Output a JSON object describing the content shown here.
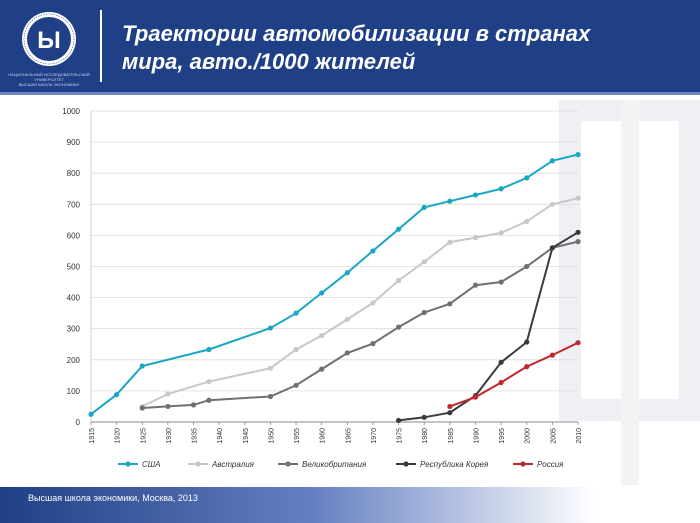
{
  "header": {
    "title_line1": "Траектории автомобилизации в странах",
    "title_line2": "мира, авто./1000 жителей",
    "logo_caption_line1": "НАЦИОНАЛЬНЫЙ ИССЛЕДОВАТЕЛЬСКИЙ УНИВЕРСИТЕТ",
    "logo_caption_line2": "ВЫСШАЯ ШКОЛА ЭКОНОМИКИ"
  },
  "footer": {
    "text": "Высшая школа экономики, Москва, 2013"
  },
  "colors": {
    "header_bg": "#1f3f86",
    "accent": "#6f86c4"
  },
  "chart_data": {
    "type": "line",
    "title": "",
    "xlabel": "",
    "ylabel": "",
    "ylim": [
      0,
      1000
    ],
    "yticks": [
      0,
      100,
      200,
      300,
      400,
      500,
      600,
      700,
      800,
      900,
      1000
    ],
    "x": [
      1915,
      1920,
      1925,
      1930,
      1935,
      1940,
      1945,
      1950,
      1955,
      1960,
      1965,
      1970,
      1975,
      1980,
      1985,
      1990,
      1995,
      2000,
      2005,
      2010
    ],
    "grid": "horizontal",
    "legend_position": "bottom",
    "series": [
      {
        "name": "США",
        "color": "#1aa7c4",
        "points": [
          [
            1915,
            25
          ],
          [
            1920,
            88
          ],
          [
            1925,
            180
          ],
          [
            1938,
            233
          ],
          [
            1950,
            302
          ],
          [
            1955,
            350
          ],
          [
            1960,
            415
          ],
          [
            1965,
            480
          ],
          [
            1970,
            550
          ],
          [
            1975,
            620
          ],
          [
            1980,
            690
          ],
          [
            1985,
            710
          ],
          [
            1990,
            730
          ],
          [
            1995,
            750
          ],
          [
            2000,
            785
          ],
          [
            2005,
            840
          ],
          [
            2010,
            860
          ]
        ]
      },
      {
        "name": "Австралия",
        "color": "#c8c8c8",
        "points": [
          [
            1925,
            50
          ],
          [
            1930,
            90
          ],
          [
            1938,
            130
          ],
          [
            1950,
            173
          ],
          [
            1955,
            233
          ],
          [
            1960,
            278
          ],
          [
            1965,
            330
          ],
          [
            1970,
            383
          ],
          [
            1975,
            455
          ],
          [
            1980,
            515
          ],
          [
            1985,
            578
          ],
          [
            1990,
            593
          ],
          [
            1995,
            608
          ],
          [
            2000,
            645
          ],
          [
            2005,
            700
          ],
          [
            2010,
            720
          ]
        ]
      },
      {
        "name": "Великобритания",
        "color": "#707070",
        "points": [
          [
            1925,
            45
          ],
          [
            1930,
            50
          ],
          [
            1935,
            55
          ],
          [
            1938,
            70
          ],
          [
            1950,
            82
          ],
          [
            1955,
            118
          ],
          [
            1960,
            170
          ],
          [
            1965,
            222
          ],
          [
            1970,
            252
          ],
          [
            1975,
            305
          ],
          [
            1980,
            352
          ],
          [
            1985,
            380
          ],
          [
            1990,
            440
          ],
          [
            1995,
            450
          ],
          [
            2000,
            500
          ],
          [
            2005,
            560
          ],
          [
            2010,
            580
          ]
        ]
      },
      {
        "name": "Республика Корея",
        "color": "#3a3a3a",
        "points": [
          [
            1975,
            5
          ],
          [
            1980,
            15
          ],
          [
            1985,
            30
          ],
          [
            1990,
            85
          ],
          [
            1995,
            192
          ],
          [
            2000,
            257
          ],
          [
            2005,
            560
          ],
          [
            2010,
            610
          ]
        ]
      },
      {
        "name": "Россия",
        "color": "#c0282d",
        "points": [
          [
            1985,
            50
          ],
          [
            1990,
            80
          ],
          [
            1995,
            127
          ],
          [
            2000,
            178
          ],
          [
            2005,
            215
          ],
          [
            2010,
            255
          ]
        ]
      }
    ]
  }
}
